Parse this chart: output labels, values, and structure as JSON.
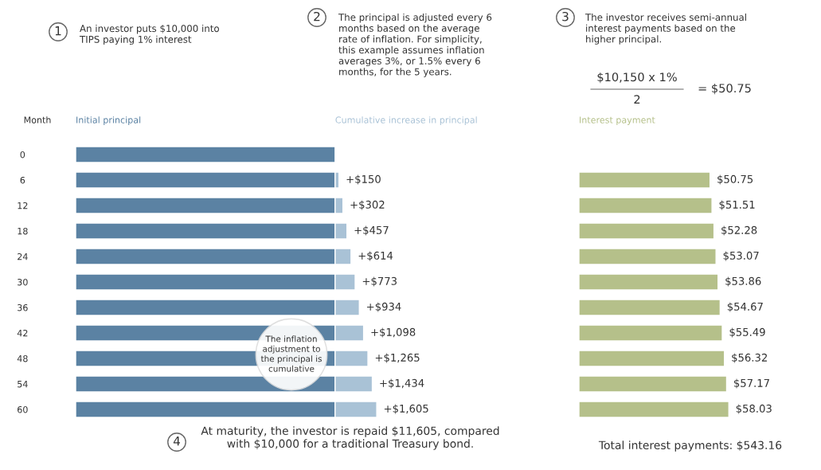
{
  "chart_data": [
    {
      "type": "bar",
      "orientation": "horizontal",
      "stacked": true,
      "ylabel": "Month",
      "tick_labels": "y",
      "categories": [
        "0",
        "6",
        "12",
        "18",
        "24",
        "30",
        "36",
        "42",
        "48",
        "54",
        "60"
      ],
      "series": [
        {
          "name": "Initial principal",
          "color": "#5b82a3",
          "values": [
            10000,
            10000,
            10000,
            10000,
            10000,
            10000,
            10000,
            10000,
            10000,
            10000,
            10000
          ]
        },
        {
          "name": "Cumulative increase in principal",
          "color": "#a9c2d6",
          "values": [
            null,
            150,
            302,
            457,
            614,
            773,
            934,
            1098,
            1265,
            1434,
            1605
          ],
          "value_labels": [
            null,
            "+$150",
            "+$302",
            "+$457",
            "+$614",
            "+$773",
            "+$934",
            "+$1,098",
            "+$1,265",
            "+$1,434",
            "+$1,605"
          ]
        }
      ],
      "annotations": [
        "1",
        "An investor puts $10,000 into\nTIPS paying 1% interest",
        "2",
        "The principal is adjusted every 6\nmonths based on the average\nrate of inflation. For simplicity,\nthis example assumes inflation\naverages 3%, or 1.5% every 6\nmonths, for the 5 years.",
        "The inflation\nadjustment to\nthe principal is\ncumulative",
        "4",
        "At maturity, the investor is repaid $11,605, compared\nwith $10,000 for a traditional Treasury bond."
      ]
    },
    {
      "type": "bar",
      "orientation": "horizontal",
      "tick_labels": false,
      "categories": [
        "0",
        "6",
        "12",
        "18",
        "24",
        "30",
        "36",
        "42",
        "48",
        "54",
        "60"
      ],
      "series": [
        {
          "name": "Interest payment",
          "color": "#b5c08a",
          "values": [
            null,
            50.75,
            51.51,
            52.28,
            53.07,
            53.86,
            54.67,
            55.49,
            56.32,
            57.17,
            58.03
          ],
          "value_labels": [
            null,
            "$50.75",
            "$51.51",
            "$52.28",
            "$53.07",
            "$53.86",
            "$54.67",
            "$55.49",
            "$56.32",
            "$57.17",
            "$58.03"
          ]
        }
      ],
      "annotations": [
        "3",
        "The investor receives semi-annual\ninterest payments based on the\nhigher principal.",
        "$10,150 x 1%",
        "2",
        "= $50.75",
        "Total interest payments: $543.16"
      ]
    }
  ]
}
